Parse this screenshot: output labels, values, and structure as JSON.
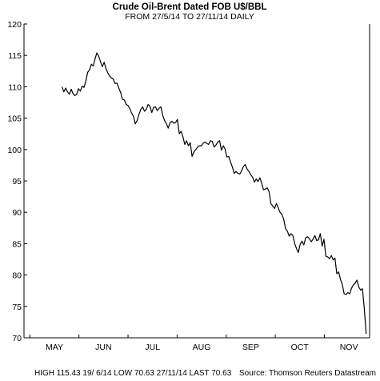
{
  "chart_data": {
    "type": "line",
    "title": "Crude Oil-Brent Dated FOB U$/BBL",
    "subtitle": "FROM 27/5/14 TO 27/11/14 DAILY",
    "xlabel": "",
    "ylabel": "",
    "ylim": [
      70,
      120
    ],
    "y_ticks": [
      120,
      115,
      110,
      105,
      100,
      95,
      90,
      85,
      80,
      75,
      70
    ],
    "x_ticks": [
      "MAY",
      "JUN",
      "JUL",
      "AUG",
      "SEP",
      "OCT",
      "NOV"
    ],
    "grid": false,
    "legend": "none",
    "line_color": "#000000",
    "series": [
      {
        "values": [
          110.0,
          109.2,
          109.8,
          109.2,
          108.8,
          109.6,
          108.9,
          108.6,
          108.8,
          109.7,
          109.3,
          110.1,
          109.9,
          110.9,
          112.3,
          112.7,
          113.6,
          113.3,
          114.4,
          115.4,
          114.9,
          114.0,
          113.2,
          113.9,
          112.9,
          112.2,
          111.7,
          111.4,
          111.2,
          110.5,
          110.6,
          109.8,
          109.1,
          108.0,
          107.9,
          107.2,
          107.0,
          106.5,
          105.8,
          105.3,
          104.1,
          104.6,
          105.6,
          106.4,
          106.8,
          106.1,
          106.4,
          107.2,
          106.9,
          105.9,
          106.7,
          106.8,
          106.2,
          106.6,
          106.8,
          105.4,
          104.6,
          104.1,
          103.4,
          104.3,
          104.5,
          104.2,
          104.3,
          104.8,
          102.5,
          102.9,
          102.0,
          100.8,
          101.4,
          100.6,
          101.1,
          98.9,
          99.6,
          100.0,
          100.4,
          100.6,
          100.6,
          101.0,
          101.2,
          101.0,
          100.8,
          101.4,
          101.3,
          100.4,
          100.7,
          101.2,
          101.4,
          99.9,
          100.6,
          100.1,
          98.8,
          98.9,
          98.0,
          97.2,
          96.2,
          96.5,
          96.2,
          96.1,
          96.6,
          97.3,
          97.6,
          96.9,
          96.5,
          96.0,
          95.6,
          94.8,
          95.3,
          94.9,
          95.5,
          94.6,
          93.6,
          93.7,
          93.9,
          93.3,
          91.4,
          91.0,
          90.6,
          91.4,
          90.7,
          90.0,
          89.7,
          88.9,
          87.4,
          87.0,
          86.2,
          86.6,
          86.3,
          85.0,
          84.2,
          83.6,
          84.9,
          85.4,
          84.8,
          85.9,
          86.1,
          85.8,
          85.3,
          85.7,
          86.3,
          85.5,
          85.6,
          86.6,
          84.6,
          85.7,
          83.0,
          82.9,
          82.6,
          83.1,
          82.4,
          82.7,
          80.2,
          80.5,
          79.3,
          78.5,
          77.0,
          76.9,
          77.2,
          77.0,
          77.9,
          78.4,
          78.7,
          79.2,
          78.1,
          77.6,
          77.8,
          74.6,
          70.63
        ]
      }
    ]
  },
  "footer": {
    "stats": "HIGH 115.43 19/ 6/14 LOW 70.63 27/11/14 LAST 70.63",
    "source": "Source: Thomson Reuters Datastream"
  }
}
